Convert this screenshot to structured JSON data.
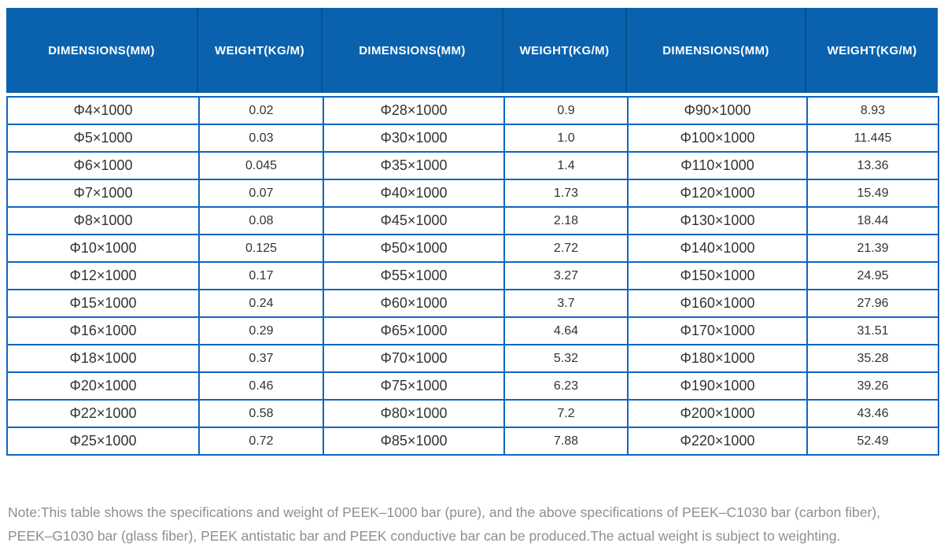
{
  "table": {
    "headers": [
      "DIMENSIONS(MM)",
      "WEIGHT(KG/M)",
      "DIMENSIONS(MM)",
      "WEIGHT(KG/M)",
      "DIMENSIONS(MM)",
      "WEIGHT(KG/M)"
    ],
    "rows": [
      [
        "Φ4×1000",
        "0.02",
        "Φ28×1000",
        "0.9",
        "Φ90×1000",
        "8.93"
      ],
      [
        "Φ5×1000",
        "0.03",
        "Φ30×1000",
        "1.0",
        "Φ100×1000",
        "11.445"
      ],
      [
        "Φ6×1000",
        "0.045",
        "Φ35×1000",
        "1.4",
        "Φ110×1000",
        "13.36"
      ],
      [
        "Φ7×1000",
        "0.07",
        "Φ40×1000",
        "1.73",
        "Φ120×1000",
        "15.49"
      ],
      [
        "Φ8×1000",
        "0.08",
        "Φ45×1000",
        "2.18",
        "Φ130×1000",
        "18.44"
      ],
      [
        "Φ10×1000",
        "0.125",
        "Φ50×1000",
        "2.72",
        "Φ140×1000",
        "21.39"
      ],
      [
        "Φ12×1000",
        "0.17",
        "Φ55×1000",
        "3.27",
        "Φ150×1000",
        "24.95"
      ],
      [
        "Φ15×1000",
        "0.24",
        "Φ60×1000",
        "3.7",
        "Φ160×1000",
        "27.96"
      ],
      [
        "Φ16×1000",
        "0.29",
        "Φ65×1000",
        "4.64",
        "Φ170×1000",
        "31.51"
      ],
      [
        "Φ18×1000",
        "0.37",
        "Φ70×1000",
        "5.32",
        "Φ180×1000",
        "35.28"
      ],
      [
        "Φ20×1000",
        "0.46",
        "Φ75×1000",
        "6.23",
        "Φ190×1000",
        "39.26"
      ],
      [
        "Φ22×1000",
        "0.58",
        "Φ80×1000",
        "7.2",
        "Φ200×1000",
        "43.46"
      ],
      [
        "Φ25×1000",
        "0.72",
        "Φ85×1000",
        "7.88",
        "Φ220×1000",
        "52.49"
      ]
    ]
  },
  "note": {
    "line1": "Note:This table shows the specifications and weight of PEEK–1000 bar (pure), and the above specifications of PEEK–C1030 bar (carbon fiber),",
    "line2": "PEEK–G1030 bar (glass fiber), PEEK antistatic bar and PEEK conductive bar can be produced.The actual weight is subject to weighting."
  },
  "colors": {
    "header_bg": "#0a62ae",
    "header_divider": "#07508f",
    "cell_border": "#1066bf",
    "header_text": "#ffffff",
    "body_text": "#333333",
    "note_text": "#8f8f8f"
  }
}
